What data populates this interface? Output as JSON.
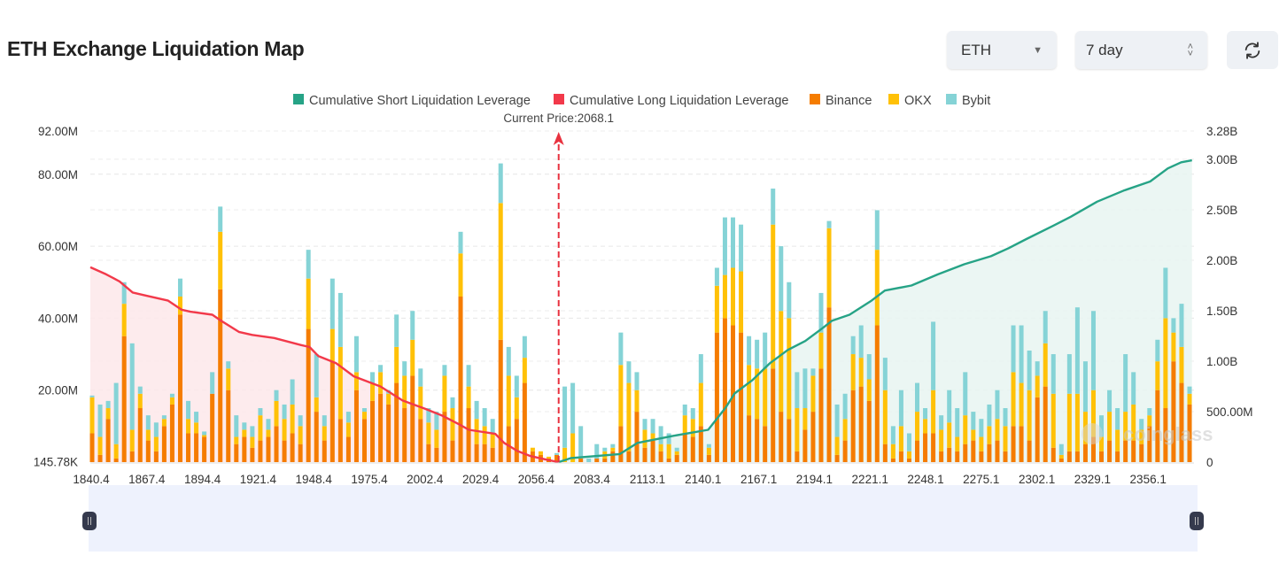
{
  "header": {
    "title": "ETH Exchange Liquidation Map",
    "symbol_select": "ETH",
    "period_select": "7 day",
    "refresh_icon": "refresh-icon"
  },
  "watermark": "coinglass",
  "chart_data": {
    "type": "bar",
    "stacked": true,
    "legend_placement": "top-center",
    "legend": [
      "Cumulative Short Liquidation Leverage",
      "Cumulative Long Liquidation Leverage",
      "Binance",
      "OKX",
      "Bybit"
    ],
    "colors": {
      "short": "#26a386",
      "long": "#f2394a",
      "binance": "#f57c00",
      "okx": "#ffc107",
      "bybit": "#85d3d6",
      "short_fill": "#e8f5f1",
      "long_fill": "#fde8ea"
    },
    "current_price_label": "Current Price:2068.1",
    "current_price": 2068.1,
    "x_ticks": [
      "1840.4",
      "1867.4",
      "1894.4",
      "1921.4",
      "1948.4",
      "1975.4",
      "2002.4",
      "2029.4",
      "2056.4",
      "2083.4",
      "2113.1",
      "2140.1",
      "2167.1",
      "2194.1",
      "2221.1",
      "2248.1",
      "2275.1",
      "2302.1",
      "2329.1",
      "2356.1"
    ],
    "x_range": [
      1840.4,
      2377
    ],
    "y_left": {
      "ticks": [
        "145.78K",
        "20.00M",
        "40.00M",
        "60.00M",
        "80.00M",
        "92.00M"
      ],
      "tick_values": [
        0.14578,
        20,
        40,
        60,
        80,
        92
      ],
      "range": [
        0,
        92
      ],
      "unit": "M"
    },
    "y_right": {
      "ticks": [
        "0",
        "500.00M",
        "1.00B",
        "1.50B",
        "2.00B",
        "2.50B",
        "3.00B",
        "3.28B"
      ],
      "tick_values": [
        0,
        0.5,
        1,
        1.5,
        2,
        2.5,
        3,
        3.28
      ],
      "range": [
        0,
        3.28
      ],
      "unit": "B"
    },
    "grid": true,
    "bars": [
      [
        8,
        10,
        0.5
      ],
      [
        2,
        5,
        9
      ],
      [
        12,
        3,
        2
      ],
      [
        1,
        4,
        17
      ],
      [
        35,
        9,
        6
      ],
      [
        3,
        6,
        24
      ],
      [
        15,
        4,
        2
      ],
      [
        6,
        3,
        4
      ],
      [
        3,
        4,
        4
      ],
      [
        10,
        2,
        1
      ],
      [
        16,
        2,
        1
      ],
      [
        41,
        5,
        5
      ],
      [
        8,
        4,
        5
      ],
      [
        8,
        3,
        3
      ],
      [
        7,
        0.5,
        1
      ],
      [
        19,
        0,
        6
      ],
      [
        48,
        16,
        7
      ],
      [
        20,
        6,
        2
      ],
      [
        5,
        2,
        6
      ],
      [
        7,
        2,
        2
      ],
      [
        4,
        3,
        3
      ],
      [
        6,
        7,
        2
      ],
      [
        7,
        2,
        3
      ],
      [
        10,
        7,
        3
      ],
      [
        6,
        6,
        4
      ],
      [
        8,
        8,
        7
      ],
      [
        5,
        5,
        3
      ],
      [
        37,
        14,
        8
      ],
      [
        14,
        4,
        12
      ],
      [
        6,
        4,
        3
      ],
      [
        28,
        9,
        14
      ],
      [
        12,
        20,
        15
      ],
      [
        7,
        4,
        3
      ],
      [
        20,
        5,
        10
      ],
      [
        12,
        2,
        1
      ],
      [
        17,
        5,
        3
      ],
      [
        19,
        6,
        2
      ],
      [
        16,
        3,
        1
      ],
      [
        22,
        10,
        9
      ],
      [
        15,
        9,
        4
      ],
      [
        24,
        10,
        8
      ],
      [
        12,
        9,
        5
      ],
      [
        5,
        6,
        4
      ],
      [
        4,
        5,
        5
      ],
      [
        14,
        10,
        3
      ],
      [
        6,
        9,
        3
      ],
      [
        46,
        12,
        6
      ],
      [
        15,
        6,
        6
      ],
      [
        5,
        7,
        5
      ],
      [
        5,
        5,
        5
      ],
      [
        4,
        4,
        4
      ],
      [
        34,
        38,
        11
      ],
      [
        10,
        14,
        8
      ],
      [
        12,
        6,
        6
      ],
      [
        22,
        7,
        6
      ],
      [
        3,
        1,
        0
      ],
      [
        2,
        1,
        0
      ],
      [
        1,
        0.5,
        0
      ],
      [
        2,
        0,
        0.5
      ],
      [
        0,
        4,
        17
      ],
      [
        0,
        8,
        14
      ],
      [
        1,
        0,
        9
      ],
      [
        0,
        0,
        1
      ],
      [
        1,
        0,
        4
      ],
      [
        1,
        2,
        1
      ],
      [
        3,
        1,
        1
      ],
      [
        10,
        17,
        9
      ],
      [
        3,
        19,
        6
      ],
      [
        14,
        6,
        5
      ],
      [
        4,
        5,
        3
      ],
      [
        6,
        2,
        4
      ],
      [
        3,
        2,
        5
      ],
      [
        1,
        4,
        3
      ],
      [
        2,
        1,
        1
      ],
      [
        8,
        5,
        3
      ],
      [
        7,
        5,
        3
      ],
      [
        10,
        12,
        8
      ],
      [
        2,
        2,
        1
      ],
      [
        36,
        13,
        5
      ],
      [
        40,
        12,
        16
      ],
      [
        38,
        16,
        14
      ],
      [
        36,
        17,
        13
      ],
      [
        13,
        14,
        8
      ],
      [
        12,
        14,
        8
      ],
      [
        10,
        16,
        10
      ],
      [
        26,
        40,
        10
      ],
      [
        14,
        28,
        18
      ],
      [
        12,
        28,
        10
      ],
      [
        3,
        12,
        10
      ],
      [
        9,
        6,
        11
      ],
      [
        14,
        10,
        2
      ],
      [
        26,
        10,
        11
      ],
      [
        43,
        22,
        2
      ],
      [
        2,
        5,
        9
      ],
      [
        6,
        6,
        7
      ],
      [
        20,
        10,
        5
      ],
      [
        21,
        8,
        9
      ],
      [
        17,
        6,
        7
      ],
      [
        38,
        21,
        11
      ],
      [
        5,
        15,
        9
      ],
      [
        1,
        4,
        5
      ],
      [
        3,
        7,
        10
      ],
      [
        1,
        2,
        5
      ],
      [
        6,
        8,
        8
      ],
      [
        8,
        4,
        3
      ],
      [
        8,
        12,
        19
      ],
      [
        3,
        6,
        4
      ],
      [
        4,
        7,
        9
      ],
      [
        3,
        4,
        8
      ],
      [
        5,
        8,
        12
      ],
      [
        6,
        3,
        5
      ],
      [
        3,
        4,
        5
      ],
      [
        5,
        5,
        6
      ],
      [
        6,
        6,
        8
      ],
      [
        3,
        7,
        5
      ],
      [
        10,
        15,
        13
      ],
      [
        10,
        12,
        16
      ],
      [
        6,
        14,
        11
      ],
      [
        18,
        6,
        4
      ],
      [
        21,
        12,
        9
      ],
      [
        4,
        15,
        11
      ],
      [
        1,
        1,
        3
      ],
      [
        3,
        16,
        11
      ],
      [
        3,
        16,
        24
      ],
      [
        5,
        9,
        14
      ],
      [
        7,
        13,
        22
      ],
      [
        3,
        4,
        6
      ],
      [
        6,
        8,
        6
      ],
      [
        3,
        6,
        6
      ],
      [
        6,
        8,
        16
      ],
      [
        6,
        10,
        9
      ],
      [
        5,
        4,
        3
      ],
      [
        10,
        3,
        2
      ],
      [
        20,
        8,
        6
      ],
      [
        15,
        25,
        14
      ],
      [
        28,
        8,
        4
      ],
      [
        22,
        10,
        12
      ],
      [
        16,
        3,
        2
      ]
    ],
    "series_long": [
      [
        1840.4,
        1.93
      ],
      [
        1848.1,
        1.86
      ],
      [
        1854.6,
        1.79
      ],
      [
        1861.0,
        1.68
      ],
      [
        1867.5,
        1.65
      ],
      [
        1878.2,
        1.6
      ],
      [
        1884.7,
        1.51
      ],
      [
        1889.0,
        1.49
      ],
      [
        1899.7,
        1.46
      ],
      [
        1904.0,
        1.4
      ],
      [
        1912.6,
        1.29
      ],
      [
        1919.1,
        1.26
      ],
      [
        1929.8,
        1.23
      ],
      [
        1942.7,
        1.16
      ],
      [
        1947.0,
        1.14
      ],
      [
        1951.3,
        1.05
      ],
      [
        1959.9,
        0.98
      ],
      [
        1968.5,
        0.85
      ],
      [
        1981.4,
        0.75
      ],
      [
        1992.2,
        0.61
      ],
      [
        2003.0,
        0.53
      ],
      [
        2011.5,
        0.46
      ],
      [
        2020.1,
        0.37
      ],
      [
        2024.4,
        0.32
      ],
      [
        2037.3,
        0.28
      ],
      [
        2041.6,
        0.19
      ],
      [
        2048.1,
        0.11
      ],
      [
        2054.5,
        0.06
      ],
      [
        2063.1,
        0.02
      ],
      [
        2068.1,
        0
      ]
    ],
    "series_short": [
      [
        2068.1,
        0
      ],
      [
        2074.1,
        0.04
      ],
      [
        2097.8,
        0.08
      ],
      [
        2106.4,
        0.19
      ],
      [
        2123.6,
        0.26
      ],
      [
        2140.8,
        0.32
      ],
      [
        2149.3,
        0.54
      ],
      [
        2153.6,
        0.68
      ],
      [
        2162.2,
        0.81
      ],
      [
        2170.8,
        0.98
      ],
      [
        2179.4,
        1.11
      ],
      [
        2188.0,
        1.2
      ],
      [
        2196.6,
        1.33
      ],
      [
        2200.9,
        1.4
      ],
      [
        2209.5,
        1.46
      ],
      [
        2220.2,
        1.6
      ],
      [
        2226.7,
        1.7
      ],
      [
        2239.6,
        1.75
      ],
      [
        2252.5,
        1.86
      ],
      [
        2265.3,
        1.96
      ],
      [
        2278.3,
        2.04
      ],
      [
        2286.9,
        2.12
      ],
      [
        2295.5,
        2.21
      ],
      [
        2308.4,
        2.34
      ],
      [
        2317.0,
        2.43
      ],
      [
        2329.9,
        2.58
      ],
      [
        2342.8,
        2.69
      ],
      [
        2355.7,
        2.78
      ],
      [
        2364.3,
        2.91
      ],
      [
        2370.8,
        2.97
      ],
      [
        2376.0,
        2.99
      ]
    ]
  }
}
